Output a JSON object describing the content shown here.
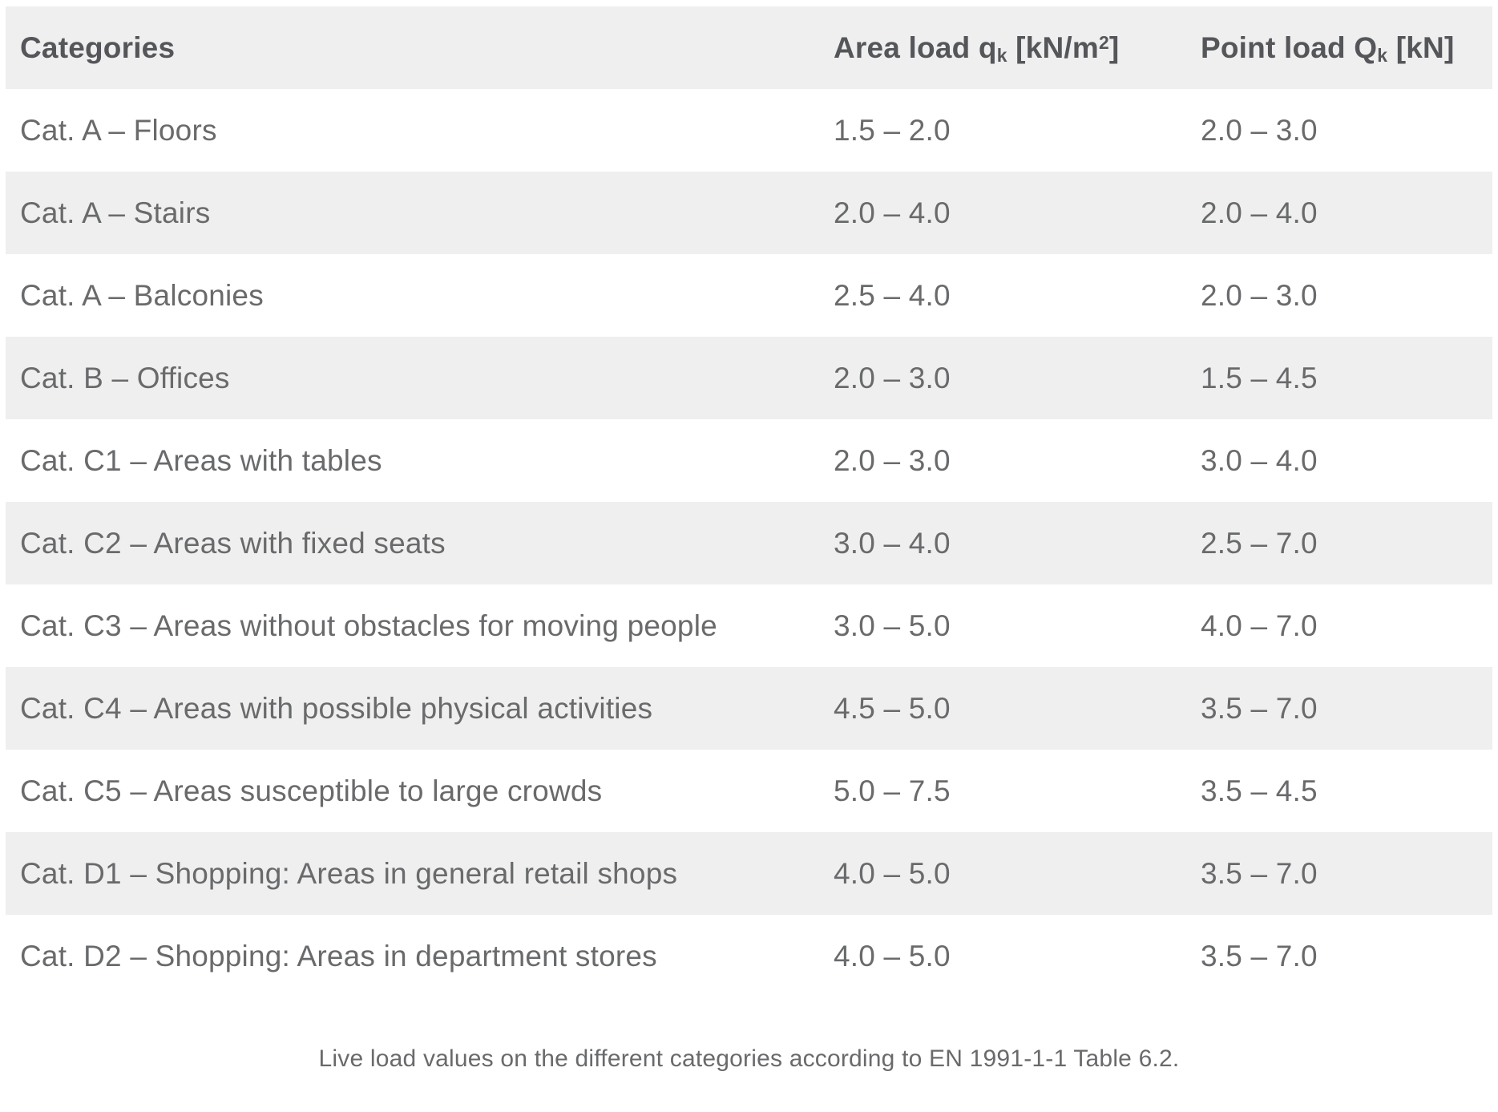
{
  "colors": {
    "stripe_row_bg": "#efefef",
    "header_text": "#55565a",
    "body_text": "#696a6c",
    "page_bg": "#ffffff"
  },
  "table": {
    "header": {
      "categories": "Categories",
      "area_load": {
        "text": "Area load q",
        "sub": "k",
        "unit_open": " [kN/m",
        "sup": "2",
        "unit_close": "]"
      },
      "point_load": {
        "text": "Point load Q",
        "sub": "k",
        "unit": " [kN]"
      }
    }
  },
  "caption": "Live load values on the different categories according to EN 1991-1-1 Table 6.2.",
  "chart_data": {
    "type": "table",
    "title": "Live loads per category (EN 1991-1-1 Table 6.2)",
    "columns": [
      "Categories",
      "Area load qk [kN/m2]",
      "Point load Qk [kN]"
    ],
    "rows": [
      [
        "Cat. A – Floors",
        "1.5 – 2.0",
        "2.0 – 3.0"
      ],
      [
        "Cat. A – Stairs",
        "2.0 – 4.0",
        "2.0 – 4.0"
      ],
      [
        "Cat. A – Balconies",
        "2.5 – 4.0",
        "2.0 – 3.0"
      ],
      [
        "Cat. B – Offices",
        "2.0 – 3.0",
        "1.5 – 4.5"
      ],
      [
        "Cat. C1 – Areas with tables",
        "2.0 – 3.0",
        "3.0 – 4.0"
      ],
      [
        "Cat. C2 – Areas with fixed seats",
        "3.0 – 4.0",
        "2.5 – 7.0"
      ],
      [
        "Cat. C3 – Areas without obstacles for moving people",
        "3.0 – 5.0",
        "4.0 – 7.0"
      ],
      [
        "Cat. C4 – Areas with possible physical activities",
        "4.5 – 5.0",
        "3.5 – 7.0"
      ],
      [
        "Cat. C5 – Areas susceptible to large crowds",
        "5.0 – 7.5",
        "3.5 – 4.5"
      ],
      [
        "Cat. D1 – Shopping: Areas in general retail shops",
        "4.0 – 5.0",
        "3.5 – 7.0"
      ],
      [
        "Cat. D2 – Shopping: Areas in department stores",
        "4.0 – 5.0",
        "3.5 – 7.0"
      ]
    ],
    "caption": "Live load values on the different categories according to EN 1991-1-1 Table 6.2."
  }
}
